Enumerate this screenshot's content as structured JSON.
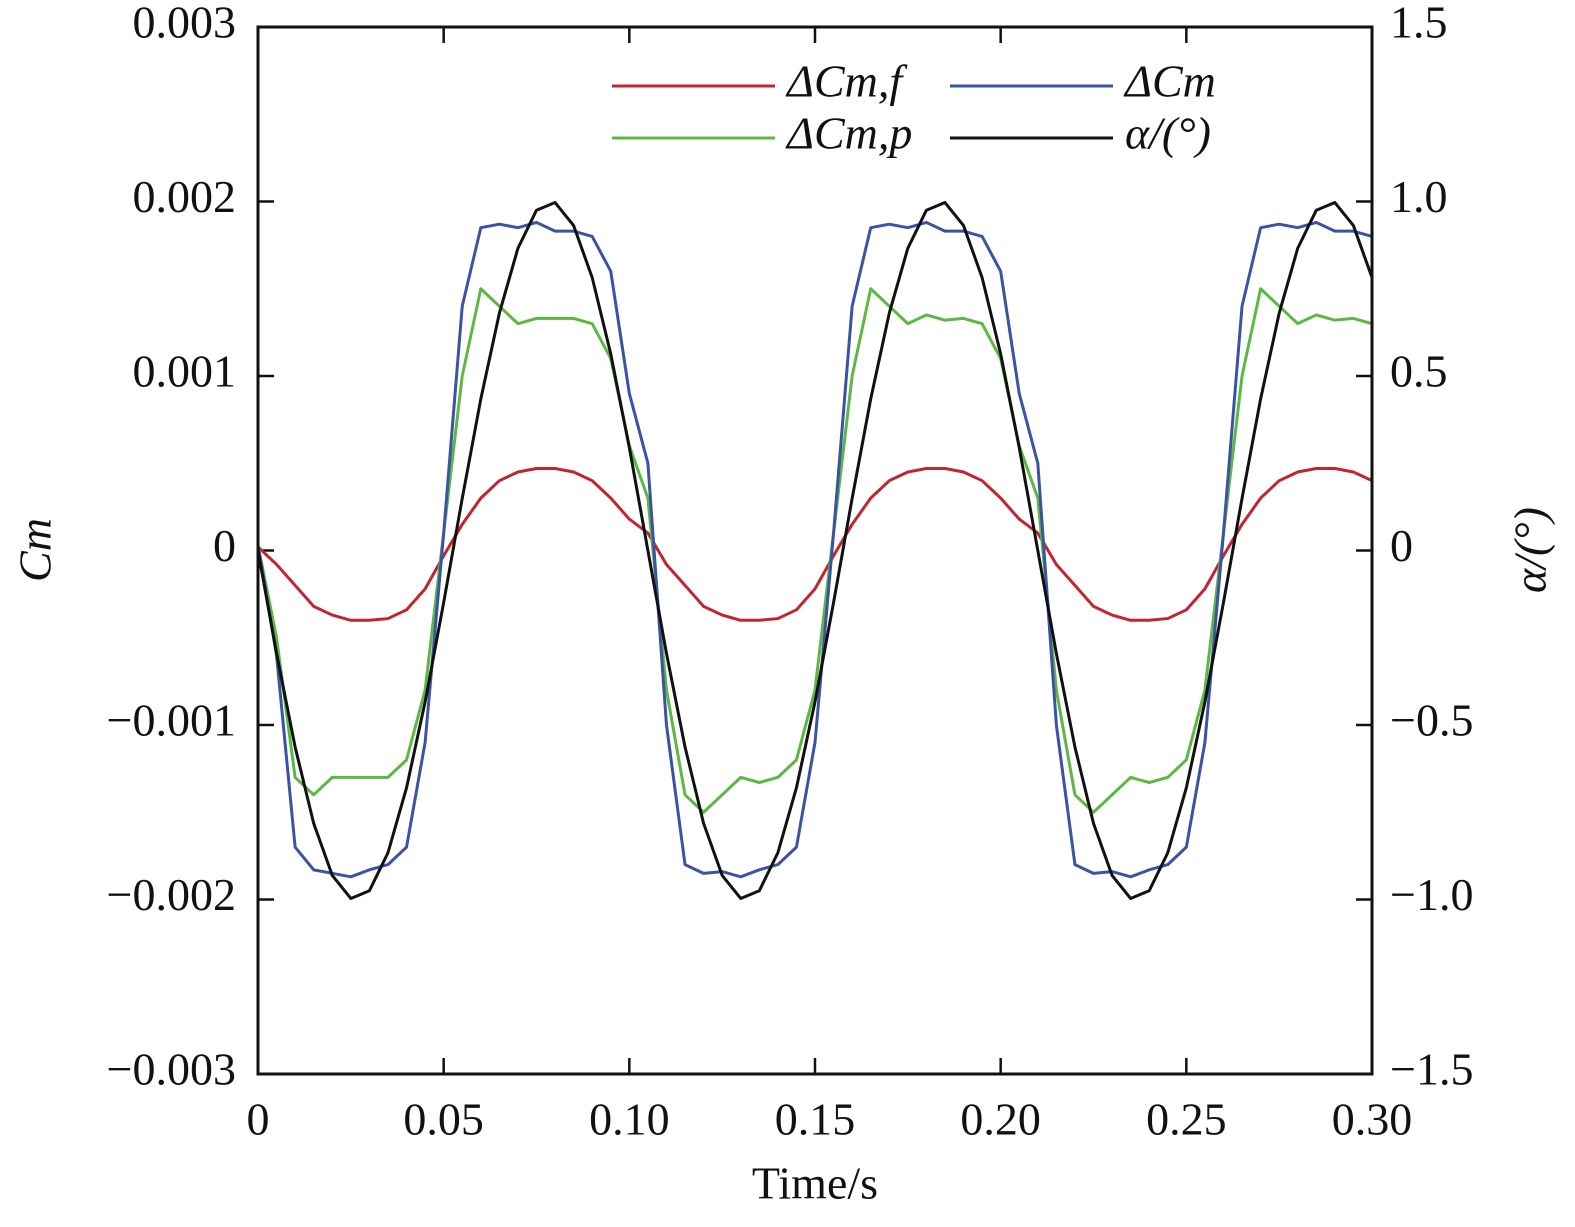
{
  "chart_data": {
    "type": "line",
    "xlabel": "Time/s",
    "ylabel": "Cm",
    "y2label": "α/(°)",
    "xlim": [
      0,
      0.3
    ],
    "ylim": [
      -0.003,
      0.003
    ],
    "y2lim": [
      -1.5,
      1.5
    ],
    "xticks": [
      0,
      0.05,
      {
        "value": 0.1,
        "label": "0.10"
      },
      0.15,
      {
        "value": 0.2,
        "label": "0.20"
      },
      0.25,
      {
        "value": 0.3,
        "label": "0.30"
      }
    ],
    "yticks": [
      {
        "value": -0.003,
        "label": "−0.003"
      },
      {
        "value": -0.002,
        "label": "−0.002"
      },
      {
        "value": -0.001,
        "label": "−0.001"
      },
      0,
      0.001,
      0.002,
      0.003
    ],
    "y2ticks": [
      {
        "value": -1.5,
        "label": "−1.5"
      },
      {
        "value": -1,
        "label": "−1.0"
      },
      {
        "value": -0.5,
        "label": "−0.5"
      },
      0,
      0.5,
      {
        "value": 1,
        "label": "1.0"
      },
      1.5
    ],
    "legend": "upper right",
    "x": [
      0,
      0.005,
      0.01,
      0.015,
      0.02,
      0.025,
      0.03,
      0.035,
      0.04,
      0.045,
      0.05,
      0.055,
      0.06,
      0.065,
      0.07,
      0.075,
      0.08,
      0.085,
      0.09,
      0.095,
      0.1,
      0.105,
      0.11,
      0.115,
      0.12,
      0.125,
      0.13,
      0.135,
      0.14,
      0.145,
      0.15,
      0.155,
      0.16,
      0.165,
      0.17,
      0.175,
      0.18,
      0.185,
      0.19,
      0.195,
      0.2,
      0.205,
      0.21,
      0.215,
      0.22,
      0.225,
      0.23,
      0.235,
      0.24,
      0.245,
      0.25,
      0.255,
      0.26,
      0.265,
      0.27,
      0.275,
      0.28,
      0.285,
      0.29,
      0.295,
      0.3
    ],
    "series": [
      {
        "name": "ΔCm,f",
        "color": "#c0262d",
        "values": [
          2e-05,
          -8e-05,
          -0.0002,
          -0.00032,
          -0.00037,
          -0.0004,
          -0.0004,
          -0.00039,
          -0.00034,
          -0.00022,
          -3e-05,
          0.00015,
          0.0003,
          0.0004,
          0.00045,
          0.00047,
          0.00047,
          0.00045,
          0.0004,
          0.0003,
          0.00018,
          0.0001,
          -8e-05,
          -0.0002,
          -0.00032,
          -0.00037,
          -0.0004,
          -0.0004,
          -0.00039,
          -0.00034,
          -0.00022,
          -3e-05,
          0.00015,
          0.0003,
          0.0004,
          0.00045,
          0.00047,
          0.00047,
          0.00045,
          0.0004,
          0.0003,
          0.00018,
          0.0001,
          -8e-05,
          -0.0002,
          -0.00032,
          -0.00037,
          -0.0004,
          -0.0004,
          -0.00039,
          -0.00034,
          -0.00022,
          -3e-05,
          0.00015,
          0.0003,
          0.0004,
          0.00045,
          0.00047,
          0.00047,
          0.00045,
          0.0004
        ]
      },
      {
        "name": "ΔCm,p",
        "color": "#5cb843",
        "values": [
          3e-05,
          -0.0005,
          -0.0013,
          -0.0014,
          -0.0013,
          -0.0013,
          -0.0013,
          -0.0013,
          -0.0012,
          -0.0008,
          0.0001,
          0.001,
          0.0015,
          0.0014,
          0.0013,
          0.00133,
          0.00133,
          0.00133,
          0.0013,
          0.0011,
          0.0006,
          0.0003,
          -0.0008,
          -0.0014,
          -0.0015,
          -0.0014,
          -0.0013,
          -0.00133,
          -0.0013,
          -0.0012,
          -0.0008,
          0.0001,
          0.001,
          0.0015,
          0.0014,
          0.0013,
          0.00135,
          0.00132,
          0.00133,
          0.0013,
          0.0011,
          0.0006,
          0.0003,
          -0.0008,
          -0.0014,
          -0.0015,
          -0.0014,
          -0.0013,
          -0.00133,
          -0.0013,
          -0.0012,
          -0.0008,
          0.0001,
          0.001,
          0.0015,
          0.0014,
          0.0013,
          0.00135,
          0.00132,
          0.00133,
          0.0013
        ]
      },
      {
        "name": "ΔCm",
        "color": "#3a53a4",
        "values": [
          3e-05,
          -0.0006,
          -0.0017,
          -0.00183,
          -0.00185,
          -0.00187,
          -0.00183,
          -0.0018,
          -0.0017,
          -0.0011,
          0.0001,
          0.0014,
          0.00185,
          0.00187,
          0.00185,
          0.00188,
          0.00183,
          0.00183,
          0.0018,
          0.0016,
          0.0009,
          0.0005,
          -0.001,
          -0.0018,
          -0.00185,
          -0.00184,
          -0.00187,
          -0.00183,
          -0.0018,
          -0.0017,
          -0.0011,
          0.0001,
          0.0014,
          0.00185,
          0.00187,
          0.00185,
          0.00188,
          0.00183,
          0.00183,
          0.0018,
          0.0016,
          0.0009,
          0.0005,
          -0.001,
          -0.0018,
          -0.00185,
          -0.00184,
          -0.00187,
          -0.00183,
          -0.0018,
          -0.0017,
          -0.0011,
          0.0001,
          0.0014,
          0.00185,
          0.00187,
          0.00185,
          0.00188,
          0.00183,
          0.00183,
          0.0018
        ]
      },
      {
        "name": "α/(°)",
        "color": "#111111",
        "axis": "y2",
        "values": [
          0,
          -0.295,
          -0.563,
          -0.782,
          -0.931,
          -0.997,
          -0.975,
          -0.866,
          -0.68,
          -0.434,
          -0.149,
          0.149,
          0.434,
          0.68,
          0.866,
          0.975,
          0.997,
          0.931,
          0.782,
          0.563,
          0.295,
          0,
          -0.295,
          -0.563,
          -0.782,
          -0.931,
          -0.997,
          -0.975,
          -0.866,
          -0.68,
          -0.434,
          -0.149,
          0.149,
          0.434,
          0.68,
          0.866,
          0.975,
          0.997,
          0.931,
          0.782,
          0.563,
          0.295,
          0,
          -0.295,
          -0.563,
          -0.782,
          -0.931,
          -0.997,
          -0.975,
          -0.866,
          -0.68,
          -0.434,
          -0.149,
          0.149,
          0.434,
          0.68,
          0.866,
          0.975,
          0.997,
          0.931,
          0.782
        ]
      }
    ]
  }
}
